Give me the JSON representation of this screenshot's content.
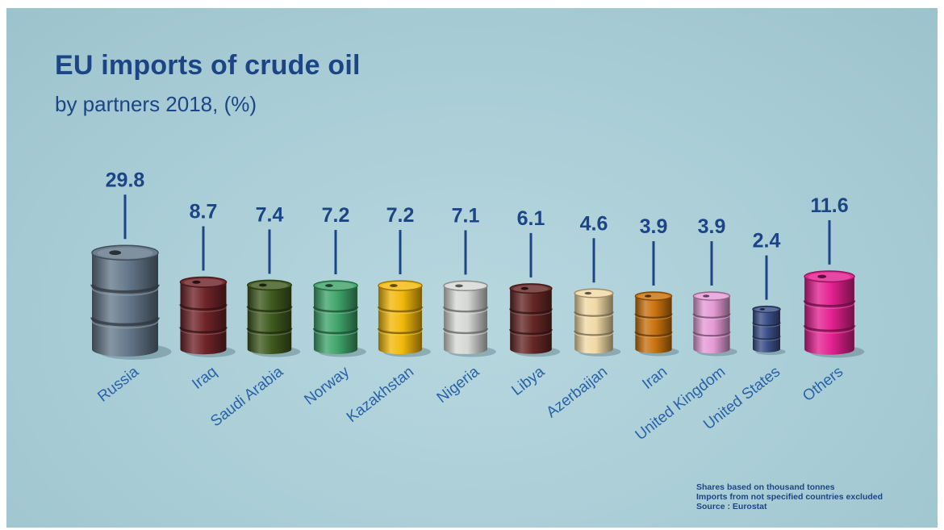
{
  "chart_data": {
    "type": "bar",
    "title": "EU imports of crude oil",
    "subtitle": "by partners 2018, (%)",
    "categories": [
      "Russia",
      "Iraq",
      "Saudi Arabia",
      "Norway",
      "Kazakhstan",
      "Nigeria",
      "Libya",
      "Azerbaijan",
      "Iran",
      "United Kingdom",
      "United States",
      "Others"
    ],
    "values": [
      29.8,
      8.7,
      7.4,
      7.2,
      7.2,
      7.1,
      6.1,
      4.6,
      3.9,
      3.9,
      2.4,
      11.6
    ],
    "value_labels": [
      "29.8",
      "8.7",
      "7.4",
      "7.2",
      "7.2",
      "7.1",
      "6.1",
      "4.6",
      "3.9",
      "3.9",
      "2.4",
      "11.6"
    ],
    "colors": [
      "#64788a",
      "#6e2428",
      "#3f5a1e",
      "#3fa46a",
      "#f2b90c",
      "#d6d8d6",
      "#652826",
      "#f1d9a6",
      "#c8720e",
      "#e59bd6",
      "#3a4f86",
      "#e3208f"
    ],
    "unit": "%",
    "grid": false,
    "legend": "none"
  },
  "notes": [
    "Shares based on thousand tonnes",
    "Imports from not specified countries excluded",
    "Source : Eurostat"
  ]
}
